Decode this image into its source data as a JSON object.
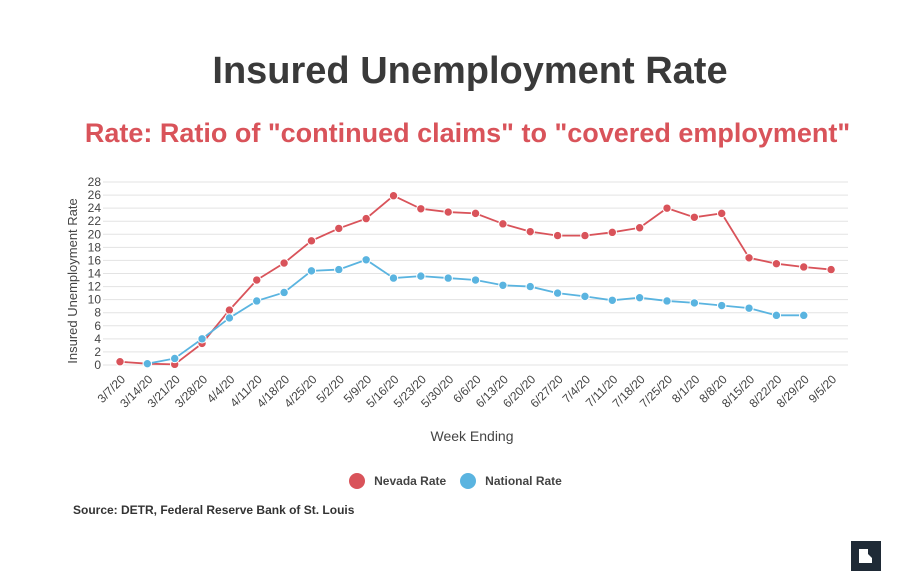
{
  "chart_data": {
    "type": "line",
    "title": "Insured Unemployment Rate",
    "subtitle": "Rate: Ratio of \"continued claims\" to \"covered employment\"",
    "xlabel": "Week Ending",
    "ylabel": "Insured Unemployment Rate",
    "ylim": [
      0,
      28
    ],
    "yticks": [
      0,
      2,
      4,
      6,
      8,
      10,
      12,
      14,
      16,
      18,
      20,
      22,
      24,
      26,
      28
    ],
    "grid": true,
    "legend_position": "bottom",
    "categories": [
      "3/7/20",
      "3/14/20",
      "3/21/20",
      "3/28/20",
      "4/4/20",
      "4/11/20",
      "4/18/20",
      "4/25/20",
      "5/2/20",
      "5/9/20",
      "5/16/20",
      "5/23/20",
      "5/30/20",
      "6/6/20",
      "6/13/20",
      "6/20/20",
      "6/27/20",
      "7/4/20",
      "7/11/20",
      "7/18/20",
      "7/25/20",
      "8/1/20",
      "8/8/20",
      "8/15/20",
      "8/22/20",
      "8/29/20",
      "9/5/20"
    ],
    "series": [
      {
        "name": "Nevada Rate",
        "color": "#d9535a",
        "values": [
          0.5,
          0.2,
          0.1,
          3.3,
          8.4,
          13.0,
          15.6,
          19.0,
          20.9,
          22.4,
          25.9,
          23.9,
          23.4,
          23.2,
          21.6,
          20.4,
          19.8,
          19.8,
          20.3,
          21.0,
          24.0,
          22.6,
          23.2,
          16.4,
          15.5,
          15.0,
          14.6
        ]
      },
      {
        "name": "National Rate",
        "color": "#5ab4e0",
        "values": [
          null,
          0.2,
          1.0,
          4.0,
          7.2,
          9.8,
          11.1,
          14.4,
          14.6,
          16.1,
          13.3,
          13.6,
          13.3,
          13.0,
          12.2,
          12.0,
          11.0,
          10.5,
          9.9,
          10.3,
          9.8,
          9.5,
          9.1,
          8.7,
          7.6,
          7.6,
          null
        ]
      }
    ]
  },
  "source": "Source: DETR, Federal Reserve Bank of St. Louis",
  "logo": {
    "icon": "nevada-independent-logo-icon"
  }
}
